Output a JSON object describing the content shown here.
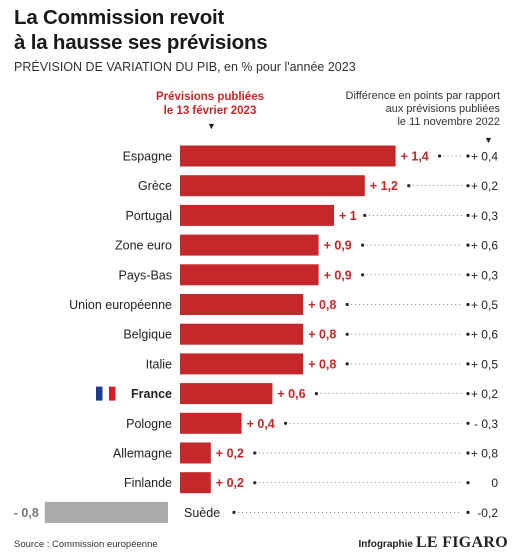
{
  "title_line1": "La Commission revoit",
  "title_line2": "à la hausse ses prévisions",
  "subtitle": "PRÉVISION DE VARIATION DU PIB, en % pour l'année 2023",
  "header_left_line1": "Prévisions publiées",
  "header_left_line2": "le 13 février 2023",
  "header_right_line1": "Différence en points par rapport",
  "header_right_line2": "aux prévisions publiées",
  "header_right_line3": "le 11 novembre 2022",
  "source": "Source : Commission européenne",
  "credit_label": "Infographie",
  "credit_brand": "LE FIGARO",
  "colors": {
    "bar": "#c4282b",
    "negative_bar": "#aaaaaa",
    "value_text": "#c4282b",
    "flag_blue": "#1f3b8f",
    "flag_red": "#d41f2a"
  },
  "chart_data": {
    "type": "bar",
    "orientation": "horizontal",
    "series": [
      {
        "name": "Prévisions publiées le 13 février 2023",
        "categories": [
          "Espagne",
          "Grèce",
          "Portugal",
          "Zone euro",
          "Pays-Bas",
          "Union européenne",
          "Belgique",
          "Italie",
          "France",
          "Pologne",
          "Allemagne",
          "Finlande",
          "Suède"
        ],
        "values": [
          1.4,
          1.2,
          1.0,
          0.9,
          0.9,
          0.8,
          0.8,
          0.8,
          0.6,
          0.4,
          0.2,
          0.2,
          -0.8
        ],
        "value_labels": [
          "+ 1,4",
          "+ 1,2",
          "+ 1",
          "+ 0,9",
          "+ 0,9",
          "+ 0,8",
          "+ 0,8",
          "+ 0,8",
          "+ 0,6",
          "+ 0,4",
          "+ 0,2",
          "+ 0,2",
          "- 0,8"
        ]
      },
      {
        "name": "Différence en points par rapport aux prévisions publiées le 11 novembre 2022",
        "values": [
          0.4,
          0.2,
          0.3,
          0.6,
          0.3,
          0.5,
          0.6,
          0.5,
          0.2,
          -0.3,
          0.8,
          0,
          -0.2
        ],
        "value_labels": [
          "+ 0,4",
          "+ 0,2",
          "+ 0,3",
          "+ 0,6",
          "+ 0,3",
          "+ 0,5",
          "+ 0,6",
          "+ 0,5",
          "+ 0,2",
          "- 0,3",
          "+ 0,8",
          "0",
          "-0,2"
        ]
      }
    ],
    "highlight": "France",
    "xlim": [
      -0.8,
      1.4
    ],
    "grid": false,
    "legend": "top"
  }
}
